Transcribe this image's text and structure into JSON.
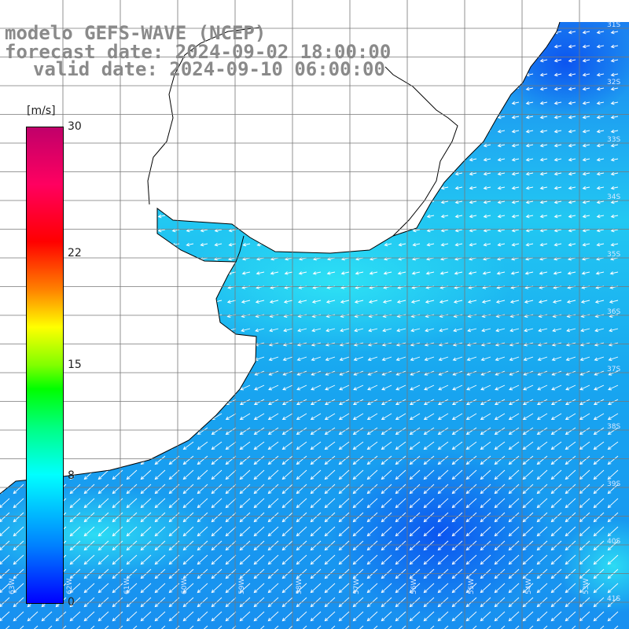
{
  "title": {
    "model": "modelo GEFS-WAVE (NCEP)",
    "forecast": "forecast date: 2024-09-02 18:00:00",
    "valid": "valid date: 2024-09-10 06:00:00"
  },
  "colorbar": {
    "unit": "[m/s]",
    "ticks": [
      {
        "label": "30",
        "value": 30
      },
      {
        "label": "22",
        "value": 22
      },
      {
        "label": "15",
        "value": 15
      },
      {
        "label": "8",
        "value": 8
      },
      {
        "label": "0",
        "value": 0
      }
    ],
    "range": [
      0,
      30
    ]
  },
  "map": {
    "region": "Río de la Plata / South Atlantic",
    "field": "wind speed with direction arrows",
    "ocean_colors": [
      "#1a7af0",
      "#18a8f0",
      "#20d8f5",
      "#0a60f0",
      "#0030f0"
    ],
    "land_color": "#ffffff",
    "coast_color": "#000000",
    "grid_color": "#777777",
    "arrow_color": "#ffffff",
    "lat_labels": [
      "31S",
      "32S",
      "33S",
      "34S",
      "35S",
      "36S",
      "37S",
      "38S",
      "39S",
      "40S",
      "41S"
    ],
    "lon_labels": [
      "63W",
      "62W",
      "61W",
      "60W",
      "59W",
      "58W",
      "57W",
      "56W",
      "55W",
      "54W",
      "53W"
    ]
  }
}
